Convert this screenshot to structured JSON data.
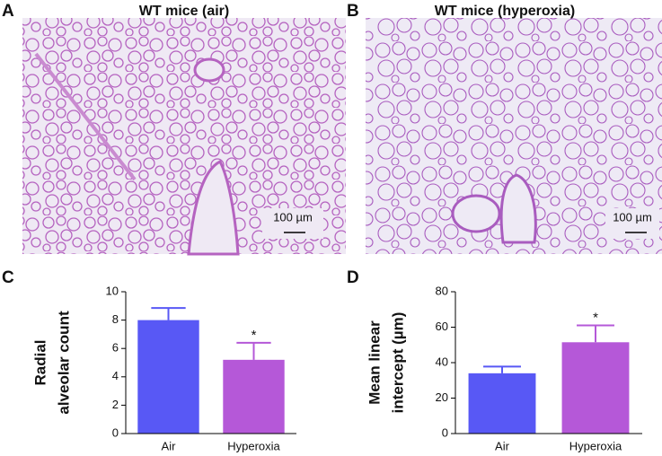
{
  "images": [
    {
      "label": "A",
      "title": "WT mice (air)",
      "scale_bar": "100 µm"
    },
    {
      "label": "B",
      "title": "WT mice (hyperoxia)",
      "scale_bar": "100 µm"
    }
  ],
  "chart_data": [
    {
      "type": "bar",
      "label": "C",
      "ylabel": [
        "Radial",
        "alveolar count"
      ],
      "categories": [
        "Air",
        "Hyperoxia"
      ],
      "values": [
        8.0,
        5.2
      ],
      "errors": [
        0.85,
        1.2
      ],
      "colors": [
        "#5858f5",
        "#b558d8"
      ],
      "annotations": [
        null,
        "*"
      ],
      "ylim": [
        0,
        10
      ],
      "yticks": [
        0,
        2,
        4,
        6,
        8,
        10
      ]
    },
    {
      "type": "bar",
      "label": "D",
      "ylabel": [
        "Mean linear",
        "intercept (µm)"
      ],
      "categories": [
        "Air",
        "Hyperoxia"
      ],
      "values": [
        34,
        51.5
      ],
      "errors": [
        3.8,
        9.5
      ],
      "colors": [
        "#5858f5",
        "#b558d8"
      ],
      "annotations": [
        null,
        "*"
      ],
      "ylim": [
        0,
        80
      ],
      "yticks": [
        0,
        20,
        40,
        60,
        80
      ]
    }
  ]
}
